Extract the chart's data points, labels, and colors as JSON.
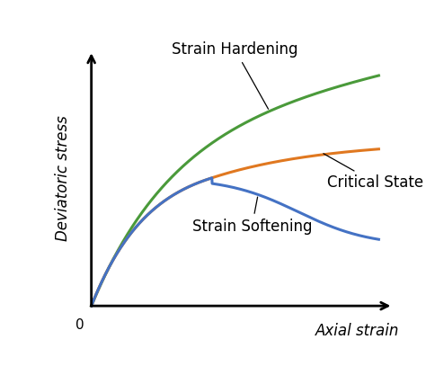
{
  "xlabel": "Axial strain",
  "ylabel": "Deviatoric stress",
  "background_color": "#ffffff",
  "strain_hardening_color": "#4a9a3a",
  "critical_state_color": "#e07820",
  "strain_softening_color": "#4472c4",
  "annotation_hardening": "Strain Hardening",
  "annotation_critical": "Critical State",
  "annotation_softening": "Strain Softening",
  "label_fontsize": 12,
  "annotation_fontsize": 12
}
